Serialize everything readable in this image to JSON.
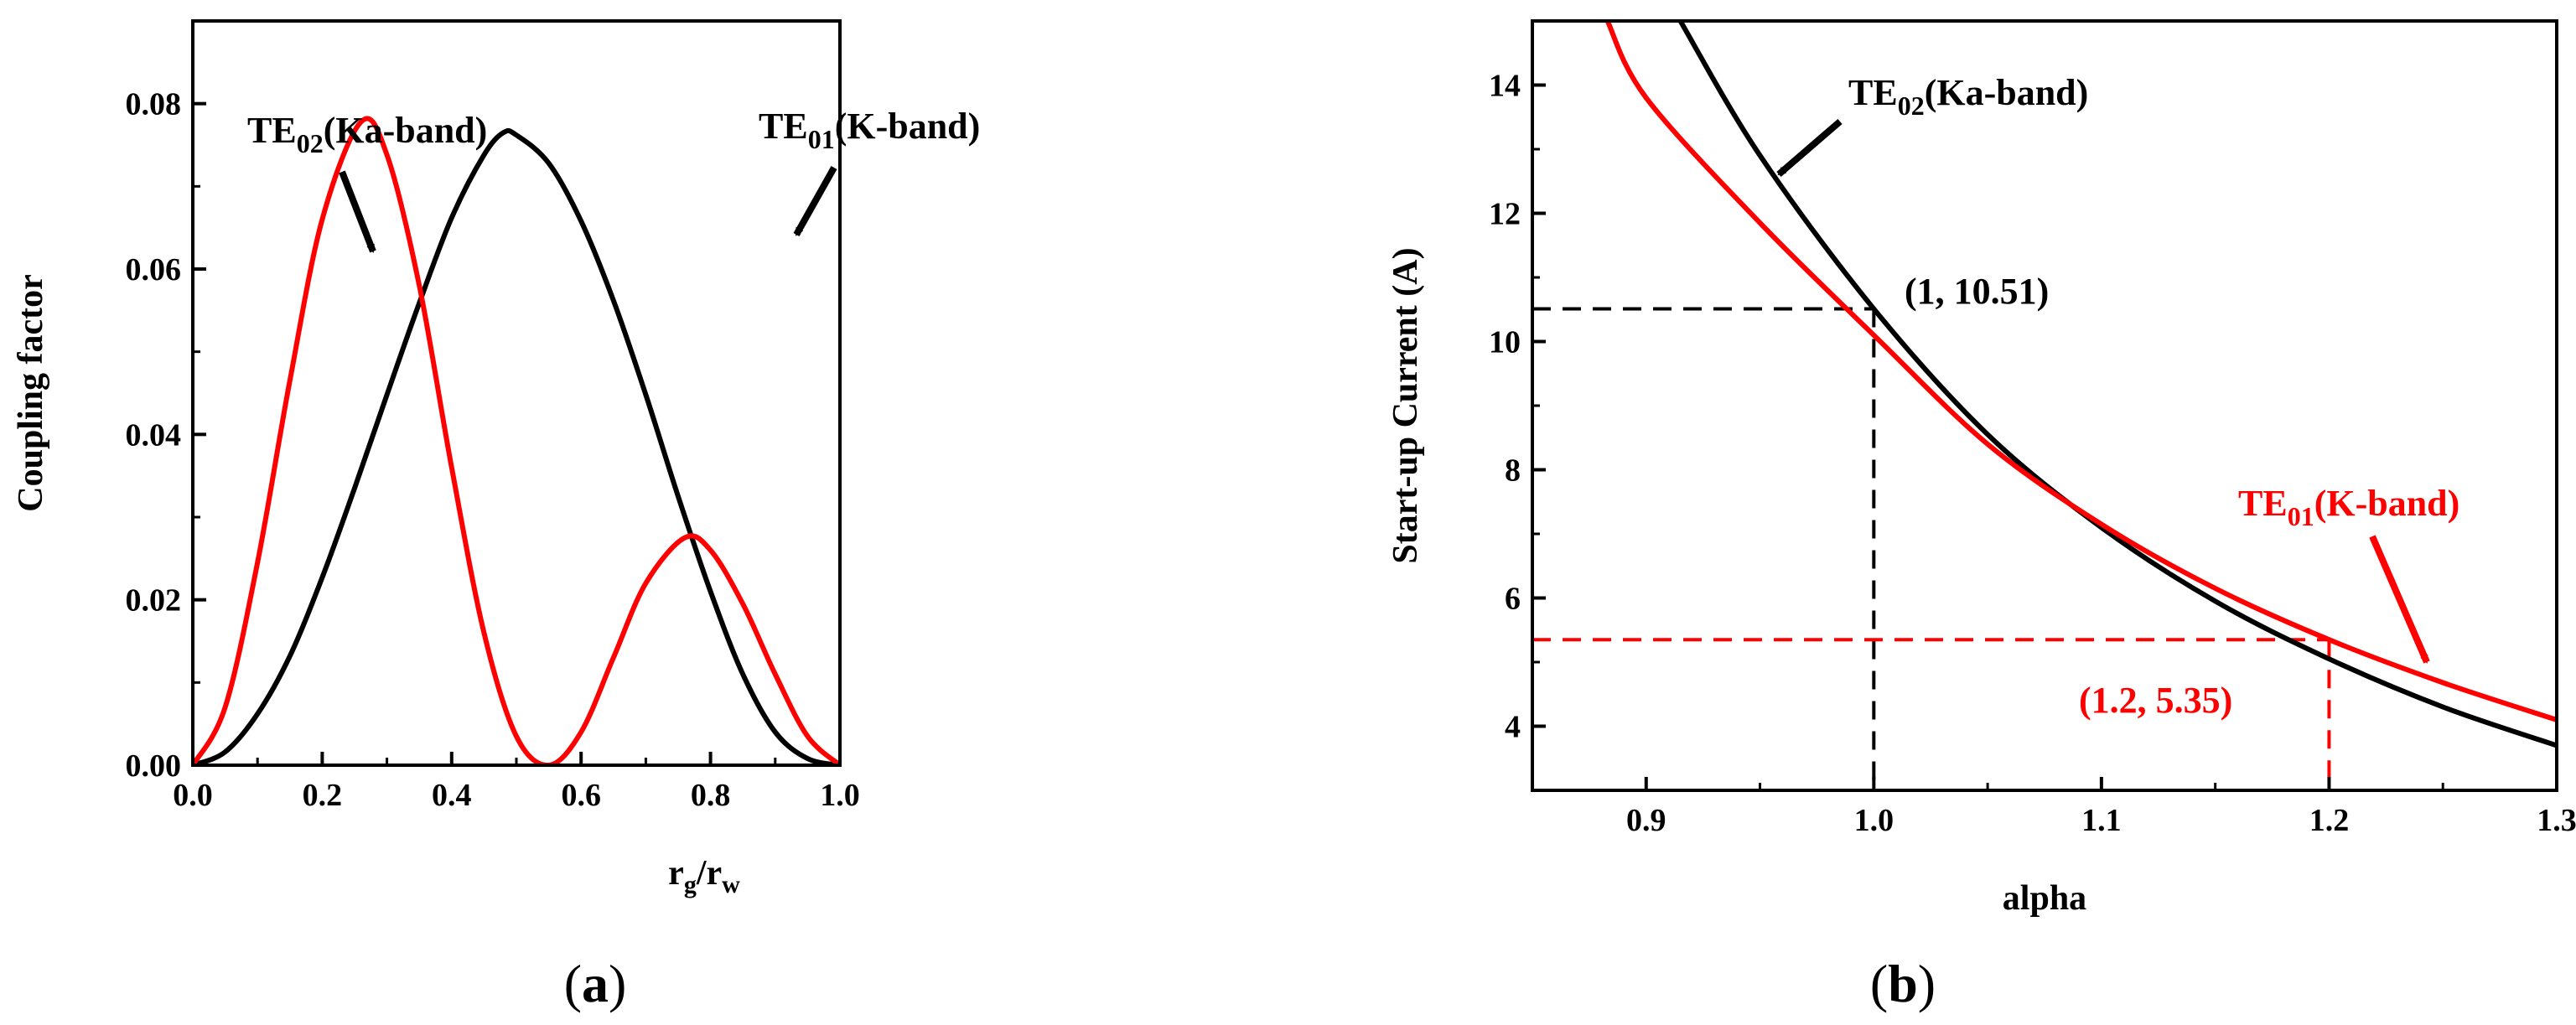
{
  "chart_data": [
    {
      "panel": "(a)",
      "type": "line",
      "xlabel": "r_g/r_w",
      "ylabel": "Coupling factor",
      "xlim": [
        0.0,
        1.0
      ],
      "ylim": [
        0.0,
        0.09
      ],
      "x_ticks": [
        "0.0",
        "0.2",
        "0.4",
        "0.6",
        "0.8",
        "1.0"
      ],
      "y_ticks": [
        "0.00",
        "0.02",
        "0.04",
        "0.06",
        "0.08"
      ],
      "series": [
        {
          "name": "TE01(K-band)",
          "color": "#000000",
          "x": [
            0.0,
            0.05,
            0.1,
            0.15,
            0.2,
            0.25,
            0.3,
            0.35,
            0.4,
            0.45,
            0.48,
            0.5,
            0.55,
            0.6,
            0.65,
            0.7,
            0.75,
            0.8,
            0.85,
            0.9,
            0.95,
            1.0
          ],
          "y": [
            0.0,
            0.0016,
            0.0062,
            0.0132,
            0.0227,
            0.0335,
            0.0448,
            0.0559,
            0.0662,
            0.0738,
            0.0765,
            0.0762,
            0.0728,
            0.0658,
            0.0562,
            0.0448,
            0.0325,
            0.021,
            0.011,
            0.004,
            0.0008,
            0.0
          ]
        },
        {
          "name": "TE02(Ka-band)",
          "color": "#ff0000",
          "x": [
            0.0,
            0.05,
            0.1,
            0.15,
            0.2,
            0.26,
            0.3,
            0.35,
            0.4,
            0.45,
            0.5,
            0.55,
            0.6,
            0.65,
            0.7,
            0.76,
            0.8,
            0.85,
            0.9,
            0.95,
            1.0
          ],
          "y": [
            0.0,
            0.007,
            0.0245,
            0.0465,
            0.066,
            0.0778,
            0.0738,
            0.058,
            0.036,
            0.016,
            0.0035,
            0.0,
            0.004,
            0.013,
            0.022,
            0.0275,
            0.026,
            0.0195,
            0.011,
            0.0035,
            0.0
          ]
        }
      ],
      "annotations": [
        {
          "base": "TE",
          "sub": "02",
          "rest": "(Ka-band)",
          "color": "#000000"
        },
        {
          "base": "TE",
          "sub": "01",
          "rest": "(K-band)",
          "color": "#000000"
        }
      ]
    },
    {
      "panel": "(b)",
      "type": "line",
      "xlabel": "alpha",
      "ylabel": "Start-up Current (A)",
      "xlim": [
        0.85,
        1.3
      ],
      "ylim": [
        3.0,
        15.0
      ],
      "x_ticks": [
        "0.9",
        "1.0",
        "1.1",
        "1.2",
        "1.3"
      ],
      "y_ticks": [
        "4",
        "6",
        "8",
        "10",
        "12",
        "14"
      ],
      "series": [
        {
          "name": "TE02(Ka-band)",
          "color": "#000000",
          "x": [
            0.915,
            0.95,
            1.0,
            1.05,
            1.1,
            1.15,
            1.2,
            1.25,
            1.3
          ],
          "y": [
            15.0,
            12.9,
            10.51,
            8.55,
            7.1,
            5.95,
            5.05,
            4.3,
            3.7
          ]
        },
        {
          "name": "TE01(K-band)",
          "color": "#ff0000",
          "x": [
            0.883,
            0.9,
            0.95,
            1.0,
            1.05,
            1.1,
            1.15,
            1.2,
            1.25,
            1.3
          ],
          "y": [
            15.0,
            13.8,
            11.85,
            10.1,
            8.4,
            7.15,
            6.15,
            5.35,
            4.68,
            4.1
          ]
        }
      ],
      "guides": [
        {
          "x": 1.0,
          "y": 10.51,
          "color": "#000000",
          "label": "(1, 10.51)"
        },
        {
          "x": 1.2,
          "y": 5.35,
          "color": "#ff0000",
          "label": "(1.2, 5.35)"
        }
      ],
      "annotations": [
        {
          "base": "TE",
          "sub": "02",
          "rest": "(Ka-band)",
          "color": "#000000"
        },
        {
          "base": "TE",
          "sub": "01",
          "rest": "(K-band)",
          "color": "#ff0000"
        }
      ]
    }
  ],
  "captions": {
    "a": "a",
    "b": "b"
  },
  "panel_a_xlabel": {
    "r1": "r",
    "s1": "g",
    "slash": "/",
    "r2": "r",
    "s2": "w"
  }
}
